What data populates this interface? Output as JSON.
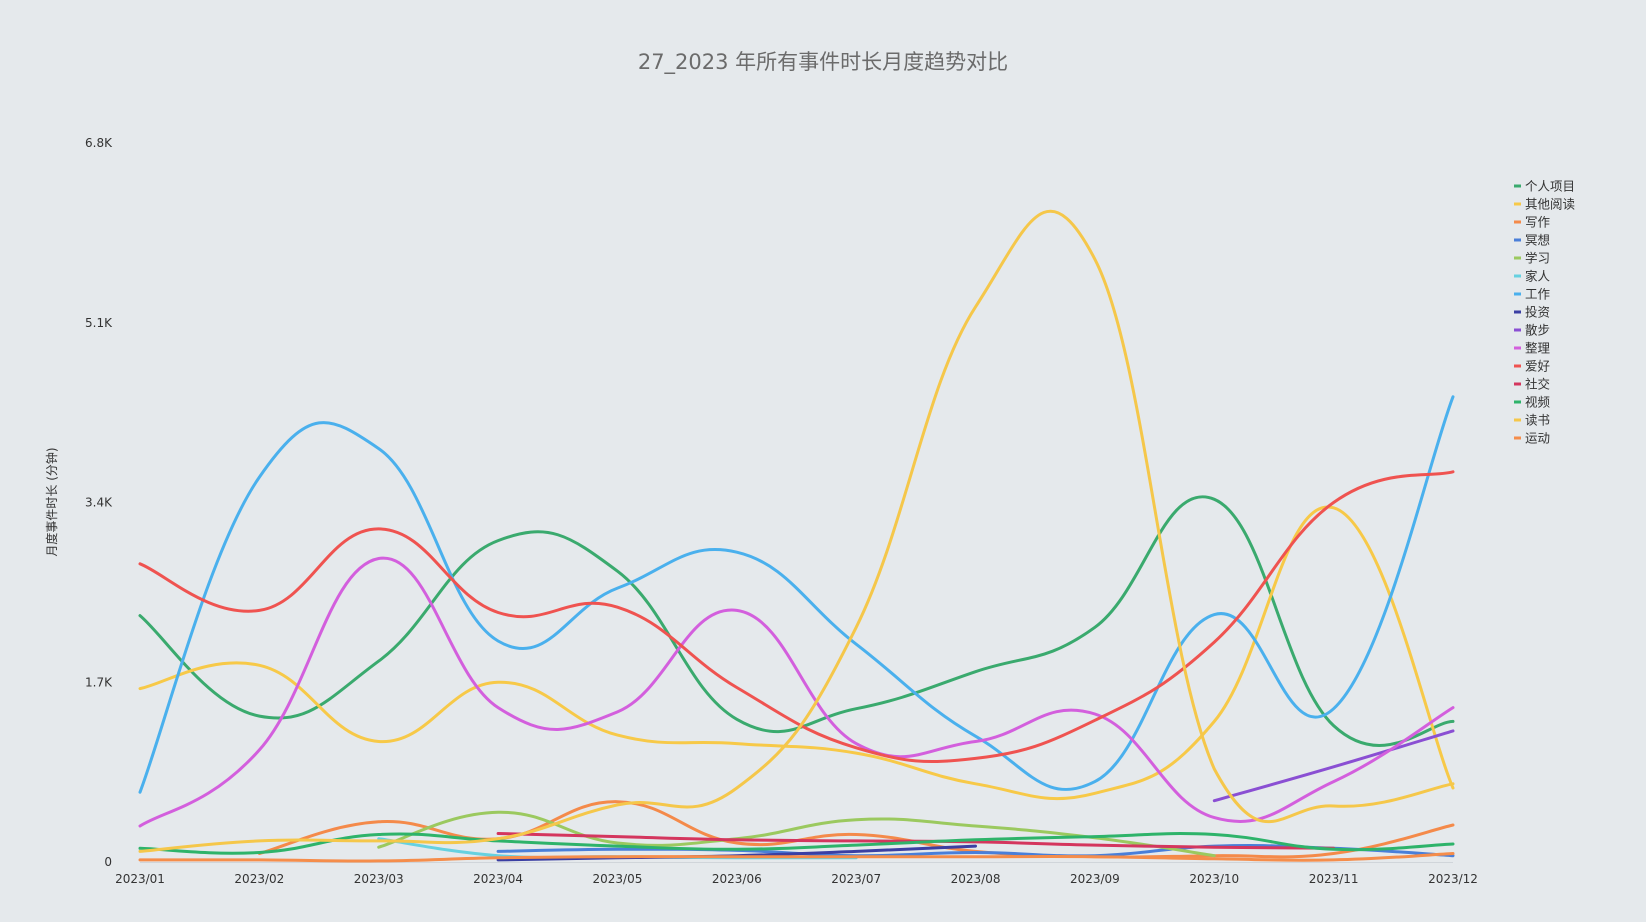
{
  "chart_data": {
    "type": "line",
    "title": "27_2023 年所有事件时长月度趋势对比",
    "xlabel": "",
    "ylabel": "月度事件时长 (分钟)",
    "categories": [
      "2023/01",
      "2023/02",
      "2023/03",
      "2023/04",
      "2023/05",
      "2023/06",
      "2023/07",
      "2023/08",
      "2023/09",
      "2023/10",
      "2023/11",
      "2023/12"
    ],
    "ylim": [
      0,
      6800
    ],
    "yticks": [
      {
        "value": 0,
        "label": "0"
      },
      {
        "value": 1700,
        "label": "1.7K"
      },
      {
        "value": 3400,
        "label": "3.4K"
      },
      {
        "value": 5100,
        "label": "5.1K"
      },
      {
        "value": 6800,
        "label": "6.8K"
      }
    ],
    "grid": false,
    "legend_position": "right",
    "series": [
      {
        "name": "个人项目",
        "color": "#3aaa6e",
        "values": [
          2330,
          1380,
          1900,
          3040,
          2750,
          1350,
          1450,
          1800,
          2220,
          3430,
          1290,
          1330
        ]
      },
      {
        "name": "其他阅读",
        "color": "#f7c948",
        "values": [
          1640,
          1860,
          1140,
          1700,
          1200,
          1120,
          1030,
          740,
          650,
          1330,
          3350,
          700
        ]
      },
      {
        "name": "写作",
        "color": "#f48a4a",
        "values": [
          null,
          80,
          380,
          220,
          570,
          180,
          260,
          100,
          50,
          60,
          80,
          350
        ]
      },
      {
        "name": "冥想",
        "color": "#4a7fd9",
        "values": [
          null,
          null,
          null,
          100,
          120,
          110,
          60,
          90,
          60,
          150,
          130,
          60
        ]
      },
      {
        "name": "学习",
        "color": "#9bc95f",
        "values": [
          null,
          null,
          140,
          470,
          180,
          220,
          400,
          340,
          230,
          60,
          null,
          null
        ]
      },
      {
        "name": "家人",
        "color": "#66d1e0",
        "values": [
          null,
          null,
          220,
          60,
          50,
          40,
          40,
          null,
          null,
          null,
          null,
          null
        ]
      },
      {
        "name": "工作",
        "color": "#4ab0ed",
        "values": [
          660,
          3640,
          3910,
          2090,
          2590,
          2930,
          2060,
          1190,
          760,
          2340,
          1450,
          4400
        ]
      },
      {
        "name": "投资",
        "color": "#3b3fa3",
        "values": [
          null,
          null,
          null,
          20,
          40,
          60,
          100,
          150,
          null,
          null,
          null,
          null
        ]
      },
      {
        "name": "散步",
        "color": "#8a4fd3",
        "values": [
          null,
          null,
          null,
          null,
          null,
          null,
          null,
          null,
          null,
          580,
          900,
          1240
        ]
      },
      {
        "name": "整理",
        "color": "#d35fdd",
        "values": [
          340,
          1060,
          2870,
          1460,
          1420,
          2380,
          1120,
          1140,
          1400,
          420,
          760,
          1460
        ]
      },
      {
        "name": "爱好",
        "color": "#ef5350",
        "values": [
          2820,
          2380,
          3150,
          2360,
          2410,
          1650,
          1080,
          980,
          1340,
          2080,
          3400,
          3690
        ]
      },
      {
        "name": "社交",
        "color": "#d4365e",
        "values": [
          null,
          null,
          null,
          270,
          240,
          210,
          200,
          190,
          160,
          140,
          130,
          null
        ]
      },
      {
        "name": "视频",
        "color": "#2eb36a",
        "values": [
          130,
          90,
          260,
          200,
          150,
          120,
          160,
          210,
          240,
          260,
          120,
          170
        ]
      },
      {
        "name": "读书",
        "color": "#f5c74a",
        "values": [
          100,
          200,
          200,
          220,
          540,
          700,
          2220,
          5250,
          5700,
          880,
          530,
          740
        ]
      },
      {
        "name": "运动",
        "color": "#f58d4b",
        "values": [
          20,
          20,
          10,
          40,
          50,
          50,
          50,
          50,
          50,
          30,
          20,
          80
        ]
      }
    ]
  }
}
